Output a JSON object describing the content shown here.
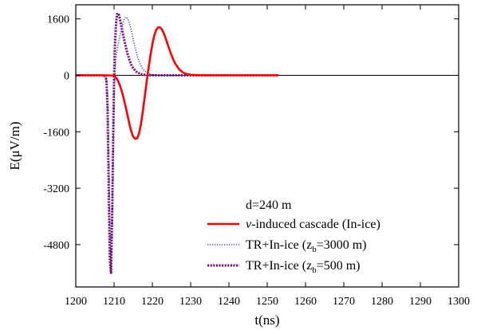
{
  "chart_data": {
    "type": "line",
    "xlabel": "t(ns)",
    "ylabel": "E(μV/m)",
    "xlim": [
      1200,
      1300
    ],
    "ylim": [
      -6000,
      2000
    ],
    "xticks": [
      1200,
      1210,
      1220,
      1230,
      1240,
      1250,
      1260,
      1270,
      1280,
      1290,
      1300
    ],
    "yticks": [
      1600,
      0,
      -1600,
      -3200,
      -4800
    ],
    "legend_title": "d=240 m",
    "legend_position": "bottom-right",
    "grid": false,
    "zero_line": true,
    "series": [
      {
        "name_parts": [
          "ν",
          "-induced cascade (In-ice)"
        ],
        "color": "#ff0000",
        "style": "solid",
        "x": [
          1200,
          1205,
          1208,
          1210.0,
          1210.5,
          1211.0,
          1211.5,
          1212.0,
          1212.5,
          1213.0,
          1213.5,
          1214.0,
          1214.5,
          1215.0,
          1215.5,
          1216.0,
          1216.5,
          1217.0,
          1217.5,
          1218.0,
          1218.5,
          1219.0,
          1219.5,
          1220.0,
          1220.5,
          1221.0,
          1221.5,
          1222.0,
          1222.5,
          1223.0,
          1223.5,
          1224.0,
          1224.5,
          1225.0,
          1225.5,
          1226.0,
          1227.0,
          1228.0,
          1229.0,
          1230.0,
          1232.0,
          1235.0,
          1240.0,
          1245.0,
          1250.0,
          1253.0
        ],
        "y": [
          0,
          0,
          0,
          -10,
          -60,
          -150,
          -280,
          -450,
          -650,
          -880,
          -1120,
          -1380,
          -1590,
          -1740,
          -1800,
          -1790,
          -1660,
          -1400,
          -1030,
          -620,
          -200,
          200,
          560,
          880,
          1130,
          1290,
          1360,
          1360,
          1300,
          1190,
          1040,
          880,
          720,
          570,
          440,
          330,
          170,
          80,
          35,
          15,
          5,
          0,
          0,
          0,
          0,
          0
        ]
      },
      {
        "name_parts": [
          "TR+In-ice (z",
          "b",
          "=3000 m)"
        ],
        "color": "#3a4fd0",
        "style": "dotted",
        "x": [
          1200,
          1205,
          1207.5,
          1208.0,
          1208.3,
          1208.6,
          1208.9,
          1209.2,
          1209.5,
          1209.8,
          1210.0,
          1210.3,
          1210.6,
          1211.0,
          1211.5,
          1212.0,
          1212.5,
          1213.0,
          1213.5,
          1214.0,
          1214.5,
          1215.0,
          1215.5,
          1216.0,
          1216.5,
          1217.0,
          1217.5,
          1218.0,
          1219.0,
          1220.0,
          1221.0,
          1222.0,
          1224.0,
          1226.0,
          1230.0,
          1240.0,
          1253.0
        ],
        "y": [
          0,
          0,
          0,
          -80,
          -600,
          -2200,
          -4200,
          -5500,
          -4300,
          -2000,
          -600,
          200,
          600,
          850,
          1100,
          1350,
          1560,
          1650,
          1620,
          1480,
          1270,
          1020,
          780,
          570,
          400,
          280,
          190,
          120,
          55,
          20,
          8,
          0,
          0,
          0,
          0,
          0,
          0
        ]
      },
      {
        "name_parts": [
          "TR+In-ice (z",
          "b",
          "=500 m)"
        ],
        "color": "#7a137c",
        "style": "dashed",
        "x": [
          1200,
          1205,
          1207.5,
          1208.0,
          1208.3,
          1208.6,
          1208.9,
          1209.2,
          1209.5,
          1209.8,
          1210.0,
          1210.2,
          1210.5,
          1210.8,
          1211.0,
          1211.3,
          1211.6,
          1212.0,
          1212.5,
          1213.0,
          1213.5,
          1214.0,
          1214.5,
          1215.0,
          1216.0,
          1217.0,
          1218.0,
          1219.0,
          1220.0,
          1222.0,
          1224.0,
          1230.0,
          1240.0,
          1253.0
        ],
        "y": [
          0,
          0,
          0,
          -120,
          -900,
          -3200,
          -5200,
          -5600,
          -4000,
          -1500,
          -100,
          800,
          1450,
          1740,
          1760,
          1700,
          1560,
          1340,
          1080,
          840,
          620,
          440,
          300,
          200,
          85,
          35,
          15,
          5,
          0,
          0,
          0,
          0,
          0,
          0
        ]
      }
    ]
  }
}
